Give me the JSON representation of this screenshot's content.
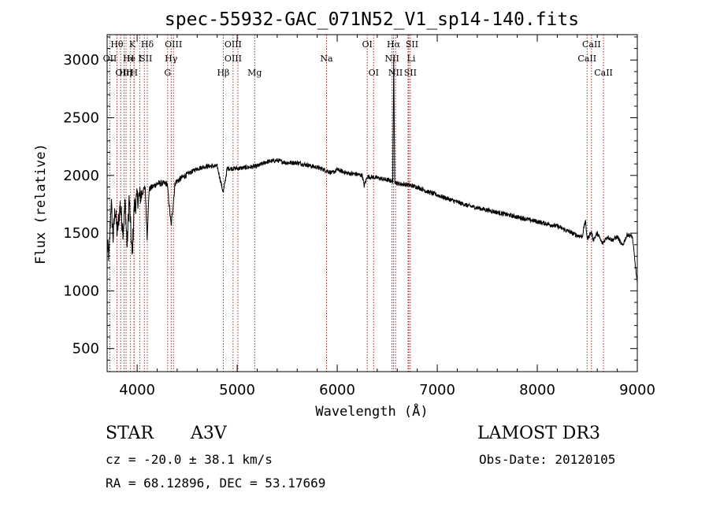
{
  "chart_data": {
    "type": "line",
    "title": "spec-55932-GAC_071N52_V1_sp14-140.fits",
    "xlabel": "Wavelength (Å)",
    "ylabel": "Flux (relative)",
    "xlim": [
      3700,
      9000
    ],
    "ylim": [
      300,
      3220
    ],
    "x_ticks": [
      4000,
      5000,
      6000,
      7000,
      8000,
      9000
    ],
    "y_ticks": [
      500,
      1000,
      1500,
      2000,
      2500,
      3000
    ],
    "line_color": "#000000",
    "marker_color": "#b22222",
    "spectrum_anchors": [
      [
        3700,
        1380
      ],
      [
        3720,
        1300
      ],
      [
        3740,
        1780
      ],
      [
        3760,
        1460
      ],
      [
        3780,
        1720
      ],
      [
        3800,
        1500
      ],
      [
        3830,
        1740
      ],
      [
        3860,
        1520
      ],
      [
        3880,
        1760
      ],
      [
        3900,
        1380
      ],
      [
        3920,
        1800
      ],
      [
        3950,
        1300
      ],
      [
        3970,
        1720
      ],
      [
        4000,
        1800
      ],
      [
        4050,
        1840
      ],
      [
        4080,
        1900
      ],
      [
        4100,
        1460
      ],
      [
        4120,
        1880
      ],
      [
        4200,
        1930
      ],
      [
        4300,
        1930
      ],
      [
        4340,
        1560
      ],
      [
        4380,
        1940
      ],
      [
        4500,
        2010
      ],
      [
        4600,
        2060
      ],
      [
        4700,
        2080
      ],
      [
        4800,
        2080
      ],
      [
        4861,
        1850
      ],
      [
        4900,
        2060
      ],
      [
        5000,
        2060
      ],
      [
        5100,
        2070
      ],
      [
        5200,
        2080
      ],
      [
        5300,
        2120
      ],
      [
        5400,
        2130
      ],
      [
        5500,
        2110
      ],
      [
        5600,
        2110
      ],
      [
        5700,
        2090
      ],
      [
        5800,
        2070
      ],
      [
        5900,
        2040
      ],
      [
        5950,
        2020
      ],
      [
        6000,
        2050
      ],
      [
        6100,
        2020
      ],
      [
        6200,
        2010
      ],
      [
        6250,
        2000
      ],
      [
        6270,
        1910
      ],
      [
        6300,
        1990
      ],
      [
        6400,
        1980
      ],
      [
        6500,
        1960
      ],
      [
        6555,
        1950
      ],
      [
        6565,
        3020
      ],
      [
        6575,
        1950
      ],
      [
        6600,
        1930
      ],
      [
        6700,
        1920
      ],
      [
        6800,
        1900
      ],
      [
        6900,
        1860
      ],
      [
        7000,
        1830
      ],
      [
        7100,
        1800
      ],
      [
        7200,
        1770
      ],
      [
        7300,
        1740
      ],
      [
        7400,
        1720
      ],
      [
        7500,
        1700
      ],
      [
        7600,
        1680
      ],
      [
        7700,
        1660
      ],
      [
        7800,
        1640
      ],
      [
        7900,
        1620
      ],
      [
        8000,
        1600
      ],
      [
        8100,
        1580
      ],
      [
        8200,
        1560
      ],
      [
        8300,
        1520
      ],
      [
        8400,
        1480
      ],
      [
        8450,
        1470
      ],
      [
        8480,
        1610
      ],
      [
        8500,
        1450
      ],
      [
        8540,
        1510
      ],
      [
        8560,
        1440
      ],
      [
        8600,
        1500
      ],
      [
        8650,
        1410
      ],
      [
        8700,
        1470
      ],
      [
        8750,
        1440
      ],
      [
        8800,
        1470
      ],
      [
        8850,
        1390
      ],
      [
        8900,
        1490
      ],
      [
        8950,
        1470
      ],
      [
        9000,
        1060
      ]
    ],
    "line_markers": [
      {
        "label": "Hθ",
        "wavelength": 3798,
        "row": 0,
        "dx": 0
      },
      {
        "label": "OII",
        "wavelength": 3727,
        "row": 1,
        "dx": 0
      },
      {
        "label": "OIII",
        "wavelength": 3869,
        "row": 2,
        "dx": 0
      },
      {
        "label": "Hη",
        "wavelength": 3835,
        "row": 2,
        "dx": 6
      },
      {
        "label": "H",
        "wavelength": 3934,
        "row": 1,
        "dx": 0
      },
      {
        "label": "He",
        "wavelength": 3889,
        "row": 1,
        "dx": 4
      },
      {
        "label": "K",
        "wavelength": 3968,
        "row": 0,
        "dx": -2
      },
      {
        "label": "H",
        "wavelength": 3970,
        "row": 2,
        "dx": 0
      },
      {
        "label": "I",
        "wavelength": 4026,
        "row": 1,
        "dx": 0
      },
      {
        "label": "SII",
        "wavelength": 4072,
        "row": 1,
        "dx": 2
      },
      {
        "label": "Hδ",
        "wavelength": 4102,
        "row": 0,
        "dx": 0
      },
      {
        "label": "OIII",
        "wavelength": 4363,
        "row": 0,
        "dx": 0
      },
      {
        "label": "Hγ",
        "wavelength": 4340,
        "row": 1,
        "dx": 0
      },
      {
        "label": "G",
        "wavelength": 4305,
        "row": 2,
        "dx": 0
      },
      {
        "label": "OIII",
        "wavelength": 4959,
        "row": 0,
        "dx": 0
      },
      {
        "label": "OIII",
        "wavelength": 5007,
        "row": 1,
        "dx": -6
      },
      {
        "label": "Hβ",
        "wavelength": 4861,
        "row": 2,
        "dx": 0
      },
      {
        "label": "Mg",
        "wavelength": 5175,
        "row": 2,
        "dx": 0
      },
      {
        "label": "Na",
        "wavelength": 5893,
        "row": 1,
        "dx": 0
      },
      {
        "label": "OI",
        "wavelength": 6300,
        "row": 0,
        "dx": 0
      },
      {
        "label": "OI",
        "wavelength": 6364,
        "row": 2,
        "dx": 0
      },
      {
        "label": "Hα",
        "wavelength": 6563,
        "row": 0,
        "dx": 0
      },
      {
        "label": "NII",
        "wavelength": 6548,
        "row": 1,
        "dx": 0
      },
      {
        "label": "NII",
        "wavelength": 6583,
        "row": 2,
        "dx": 0
      },
      {
        "label": "SII",
        "wavelength": 6716,
        "row": 0,
        "dx": 4
      },
      {
        "label": "Li",
        "wavelength": 6708,
        "row": 1,
        "dx": 4
      },
      {
        "label": "SII",
        "wavelength": 6731,
        "row": 2,
        "dx": 0
      },
      {
        "label": "CaII",
        "wavelength": 8542,
        "row": 0,
        "dx": 0
      },
      {
        "label": "CaII",
        "wavelength": 8498,
        "row": 1,
        "dx": 0
      },
      {
        "label": "CaII",
        "wavelength": 8662,
        "row": 2,
        "dx": 0
      }
    ]
  },
  "info": {
    "object_class": "STAR",
    "subclass": "A3V",
    "survey": "LAMOST DR3",
    "redshift_text": "cz = -20.0 ± 38.1 km/s",
    "obs_date_text": "Obs-Date: 20120105",
    "radec_text": "RA =  68.12896, DEC =  53.17669"
  }
}
